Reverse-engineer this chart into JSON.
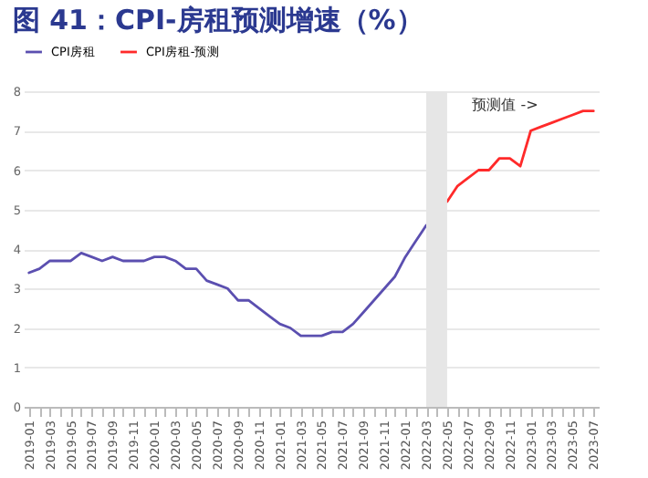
{
  "chart_data": {
    "type": "line",
    "title": "图 41：CPI-房租预测增速（%）",
    "categories": [
      "2019-01",
      null,
      "2019-03",
      null,
      "2019-05",
      null,
      "2019-07",
      null,
      "2019-09",
      null,
      "2019-11",
      null,
      "2020-01",
      null,
      "2020-03",
      null,
      "2020-05",
      null,
      "2020-07",
      null,
      "2020-09",
      null,
      "2020-11",
      null,
      "2021-01",
      null,
      "2021-03",
      null,
      "2021-05",
      null,
      "2021-07",
      null,
      "2021-09",
      null,
      "2021-11",
      null,
      "2022-01",
      null,
      "2022-03",
      null,
      "2022-05",
      null,
      "2022-07",
      null,
      "2022-09",
      null,
      "2022-11",
      null,
      "2023-01",
      null,
      "2023-03",
      null,
      "2023-05",
      null,
      "2023-07"
    ],
    "series": [
      {
        "name": "CPI房租",
        "color": "#5b4fb0",
        "values": [
          3.4,
          3.5,
          3.7,
          3.7,
          3.7,
          3.9,
          3.8,
          3.7,
          3.8,
          3.7,
          3.7,
          3.7,
          3.8,
          3.8,
          3.7,
          3.5,
          3.5,
          3.2,
          3.1,
          3.0,
          2.7,
          2.7,
          2.5,
          2.3,
          2.1,
          2.0,
          1.8,
          1.8,
          1.8,
          1.9,
          1.9,
          2.1,
          2.4,
          2.7,
          3.0,
          3.3,
          3.8,
          4.2,
          4.6,
          null,
          null,
          null,
          null,
          null,
          null,
          null,
          null,
          null,
          null,
          null,
          null,
          null,
          null,
          null,
          null
        ]
      },
      {
        "name": "CPI房租-预测",
        "color": "#ff2a2a",
        "values": [
          null,
          null,
          null,
          null,
          null,
          null,
          null,
          null,
          null,
          null,
          null,
          null,
          null,
          null,
          null,
          null,
          null,
          null,
          null,
          null,
          null,
          null,
          null,
          null,
          null,
          null,
          null,
          null,
          null,
          null,
          null,
          null,
          null,
          null,
          null,
          null,
          null,
          null,
          null,
          null,
          5.2,
          5.6,
          5.8,
          6.0,
          6.0,
          6.3,
          6.3,
          6.1,
          7.0,
          7.1,
          7.2,
          7.3,
          7.4,
          7.5,
          7.5
        ]
      }
    ],
    "ylim": [
      0,
      8
    ],
    "yticks": [
      0,
      1,
      2,
      3,
      4,
      5,
      6,
      7,
      8
    ],
    "grid": "y",
    "legend": "top",
    "bands": [
      {
        "axis": "x",
        "from": "2022-03",
        "to": "2022-05",
        "color": "#e6e6e6"
      }
    ],
    "annotations": [
      "预测值 ->"
    ]
  }
}
